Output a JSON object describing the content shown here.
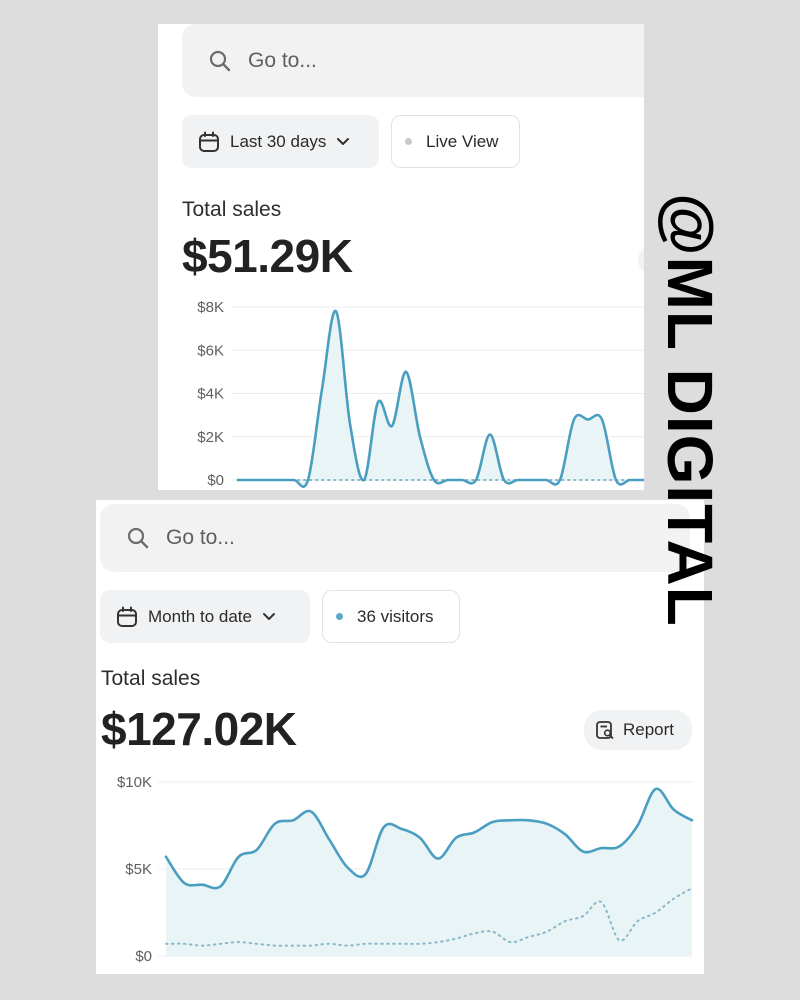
{
  "watermark": "@ML DIGITAL",
  "colors": {
    "line": "#4a9ec0",
    "dotted": "#88b8c9",
    "fill": "#e9f4f7",
    "grid": "#ececec"
  },
  "screen_top": {
    "search": {
      "placeholder": "Go to...",
      "icon": "search-icon"
    },
    "date_filter": {
      "label": "Last 30 days",
      "icon": "calendar-icon",
      "chevron": "chevron-down-icon"
    },
    "live": {
      "label": "Live View",
      "dot_color": "#c8c8c8"
    },
    "metric_label": "Total sales",
    "metric_value": "$51.29K",
    "chart_data": {
      "type": "area",
      "y_ticks": [
        "$8K",
        "$6K",
        "$4K",
        "$2K",
        "$0"
      ],
      "ylim": [
        0,
        8000
      ],
      "x": [
        0,
        1,
        2,
        3,
        4,
        5,
        6,
        7,
        8,
        9,
        10,
        11,
        12,
        13,
        14,
        15,
        16,
        17,
        18,
        19,
        20,
        21,
        22,
        23,
        24,
        25,
        26,
        27,
        28,
        29
      ],
      "series": [
        {
          "values": [
            0,
            0,
            0,
            0,
            0,
            0,
            4200,
            7800,
            2600,
            0,
            3600,
            2500,
            5000,
            2000,
            0,
            0,
            0,
            0,
            2100,
            0,
            0,
            0,
            0,
            0,
            2800,
            2800,
            2800,
            0,
            0,
            0
          ]
        },
        {
          "values": [
            0,
            0,
            0,
            0,
            0,
            0,
            0,
            0,
            0,
            0,
            0,
            0,
            0,
            0,
            0,
            0,
            0,
            0,
            0,
            0,
            0,
            0,
            0,
            0,
            0,
            0,
            0,
            0,
            0,
            0
          ]
        }
      ]
    }
  },
  "screen_bottom": {
    "search": {
      "placeholder": "Go to...",
      "icon": "search-icon"
    },
    "date_filter": {
      "label": "Month to date",
      "icon": "calendar-icon",
      "chevron": "chevron-down-icon"
    },
    "visitors": {
      "label": "36 visitors",
      "dot_color": "#5aa9c7"
    },
    "metric_label": "Total sales",
    "metric_value": "$127.02K",
    "report_button": {
      "label": "Report",
      "icon": "report-icon"
    },
    "chart_data": {
      "type": "area",
      "y_ticks": [
        "$10K",
        "$5K",
        "$0"
      ],
      "ylim": [
        0,
        10000
      ],
      "x": [
        0,
        1,
        2,
        3,
        4,
        5,
        6,
        7,
        8,
        9,
        10,
        11,
        12,
        13,
        14,
        15,
        16,
        17,
        18,
        19,
        20,
        21,
        22,
        23,
        24,
        25,
        26,
        27,
        28,
        29
      ],
      "series": [
        {
          "values": [
            5700,
            4200,
            4100,
            4000,
            5700,
            6100,
            7600,
            7800,
            8300,
            6700,
            5100,
            4700,
            7400,
            7300,
            6800,
            5600,
            6800,
            7100,
            7700,
            7800,
            7800,
            7600,
            7000,
            6000,
            6200,
            6300,
            7500,
            9600,
            8400,
            7800
          ]
        },
        {
          "values": [
            700,
            700,
            600,
            700,
            800,
            700,
            600,
            600,
            600,
            700,
            600,
            700,
            700,
            700,
            700,
            800,
            1000,
            1300,
            1400,
            800,
            1100,
            1400,
            2000,
            2300,
            3100,
            900,
            2000,
            2500,
            3300,
            3900
          ]
        }
      ]
    }
  }
}
